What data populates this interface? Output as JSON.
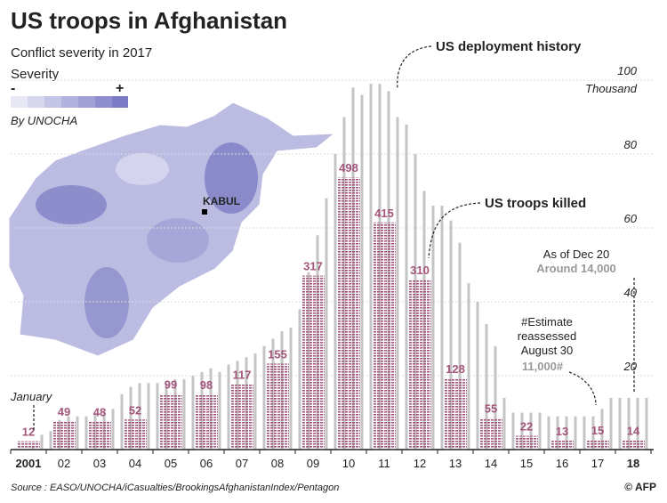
{
  "title": "US troops in Afghanistan",
  "map": {
    "subtitle": "Conflict severity in 2017",
    "legend_title": "Severity",
    "legend_low": "-",
    "legend_high": "+",
    "credit": "By UNOCHA",
    "city": "KABUL"
  },
  "chart_data": {
    "type": "bar",
    "categories": [
      "2001",
      null,
      null,
      null,
      "02",
      null,
      null,
      null,
      "03",
      null,
      null,
      null,
      "04",
      null,
      null,
      null,
      "05",
      null,
      null,
      null,
      "06",
      null,
      null,
      null,
      "07",
      null,
      null,
      null,
      "08",
      null,
      null,
      null,
      "09",
      null,
      null,
      null,
      "10",
      null,
      null,
      null,
      "11",
      null,
      null,
      null,
      "12",
      null,
      null,
      null,
      "13",
      null,
      null,
      null,
      "14",
      null,
      null,
      null,
      "15",
      null,
      null,
      null,
      "16",
      null,
      null,
      null,
      "17",
      null,
      null,
      null,
      "18",
      null,
      null,
      null
    ],
    "series": [
      {
        "name": "US deployment history",
        "color": "#c4c4c4",
        "values": [
          null,
          null,
          1,
          4,
          5,
          8,
          9,
          9,
          9,
          10,
          10,
          11,
          15,
          17,
          18,
          18,
          18,
          18,
          19,
          19,
          20,
          21,
          22,
          21,
          23,
          24,
          25,
          26,
          28,
          30,
          32,
          33,
          38,
          48,
          58,
          68,
          80,
          90,
          98,
          96,
          99,
          99,
          97,
          90,
          88,
          80,
          70,
          66,
          66,
          62,
          56,
          45,
          40,
          34,
          28,
          14,
          10,
          10,
          10,
          10,
          9,
          9,
          9,
          9,
          9,
          9,
          11,
          14,
          14,
          14,
          14,
          14
        ]
      }
    ],
    "killed": {
      "name": "US troops killed",
      "color": "#a3557a",
      "values": [
        12,
        49,
        48,
        52,
        99,
        98,
        117,
        155,
        317,
        498,
        415,
        310,
        128,
        55,
        22,
        13,
        15,
        14
      ]
    },
    "ylim": [
      0,
      100
    ],
    "yticks": [
      20,
      40,
      60,
      80,
      100
    ],
    "y_unit": "Thousand",
    "grid": true,
    "annotations": {
      "january": "January",
      "dec_date": "As of Dec 20",
      "dec_value": "Around 14,000",
      "estimate_lines": [
        "#Estimate",
        "reassessed",
        "August 30"
      ],
      "estimate_value": "11,000#"
    }
  },
  "source": "Source : EASO/UNOCHA/iCasualties/BrookingsAfghanistanIndex/Pentagon",
  "credit": "© AFP"
}
